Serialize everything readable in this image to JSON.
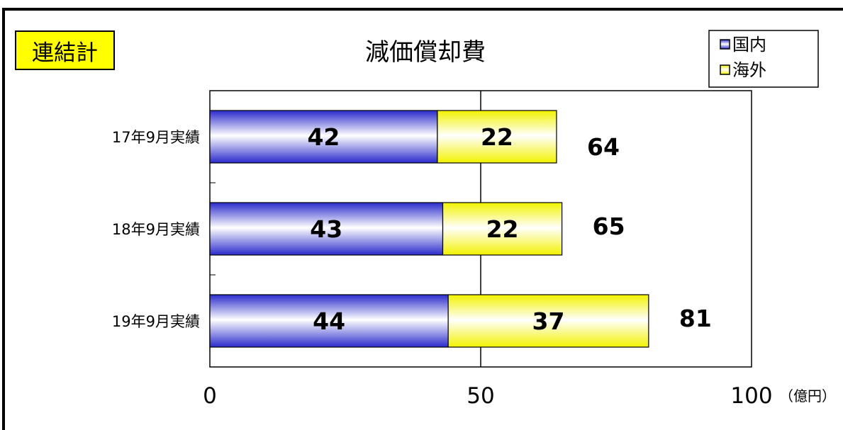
{
  "badge": "連結計",
  "chart_data": {
    "type": "bar",
    "orientation": "horizontal",
    "stacked": true,
    "title": "減価償却費",
    "categories": [
      "17年9月実績",
      "18年9月実績",
      "19年9月実績"
    ],
    "series": [
      {
        "name": "国内",
        "values": [
          42,
          43,
          44
        ],
        "color": "#3333dd"
      },
      {
        "name": "海外",
        "values": [
          22,
          22,
          37
        ],
        "color": "#ffff00"
      }
    ],
    "totals": [
      64,
      65,
      81
    ],
    "xlim": [
      0,
      100
    ],
    "xticks": [
      "0",
      "50",
      "100"
    ],
    "unit": "（億円）",
    "legend_position": "top-right",
    "grid": "vertical gridline at 50"
  }
}
